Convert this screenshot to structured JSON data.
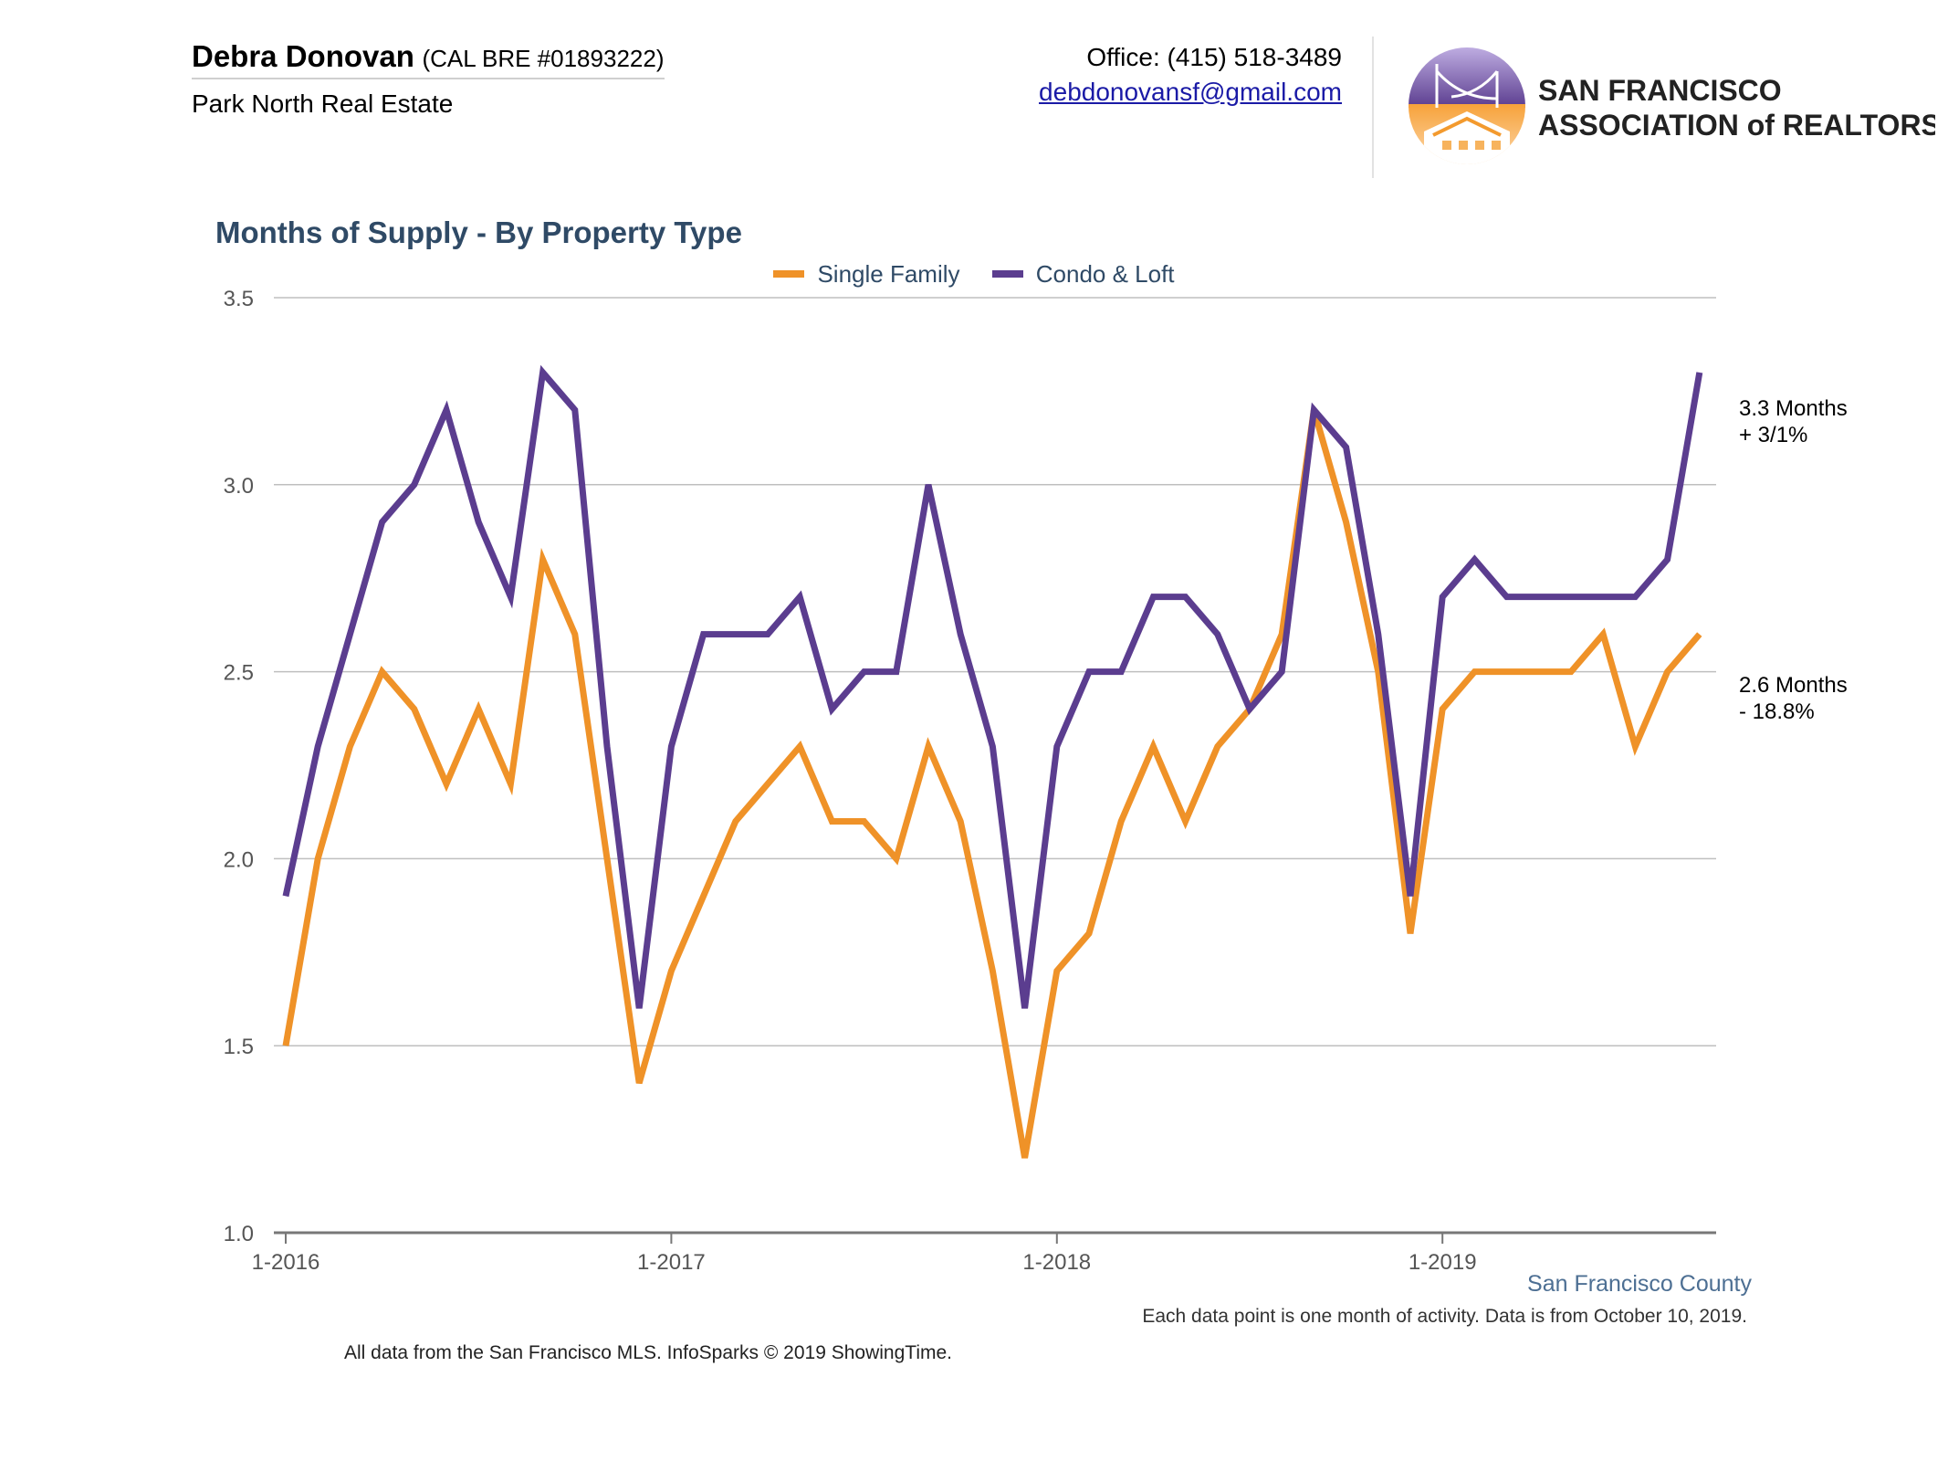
{
  "header": {
    "agent_name": "Debra Donovan",
    "agent_license": "(CAL BRE #01893222)",
    "agent_company": "Park North Real Estate",
    "office_phone": "Office: (415) 518-3489",
    "email": "debdonovansf@gmail.com",
    "logo_line1": "SAN FRANCISCO",
    "logo_line2": "ASSOCIATION of REALTORS"
  },
  "colors": {
    "single_family": "#ef9228",
    "condo_loft": "#5b3d8f",
    "title": "#2f4a66",
    "grid": "#bfbfbf"
  },
  "chart_data": {
    "type": "line",
    "title": "Months of Supply - By Property Type",
    "xlabel": "",
    "ylabel": "",
    "ylim": [
      1.0,
      3.5
    ],
    "yticks": [
      "1.0",
      "1.5",
      "2.0",
      "2.5",
      "3.0",
      "3.5"
    ],
    "xtick_labels": [
      "1-2016",
      "1-2017",
      "1-2018",
      "1-2019"
    ],
    "x": [
      "1-2016",
      "2-2016",
      "3-2016",
      "4-2016",
      "5-2016",
      "6-2016",
      "7-2016",
      "8-2016",
      "9-2016",
      "10-2016",
      "11-2016",
      "12-2016",
      "1-2017",
      "2-2017",
      "3-2017",
      "4-2017",
      "5-2017",
      "6-2017",
      "7-2017",
      "8-2017",
      "9-2017",
      "10-2017",
      "11-2017",
      "12-2017",
      "1-2018",
      "2-2018",
      "3-2018",
      "4-2018",
      "5-2018",
      "6-2018",
      "7-2018",
      "8-2018",
      "9-2018",
      "10-2018",
      "11-2018",
      "12-2018",
      "1-2019",
      "2-2019",
      "3-2019",
      "4-2019",
      "5-2019",
      "6-2019",
      "7-2019",
      "8-2019",
      "9-2019"
    ],
    "legend_position": "top-center",
    "grid": true,
    "series": [
      {
        "name": "Single Family",
        "values": [
          1.5,
          2.0,
          2.3,
          2.5,
          2.4,
          2.2,
          2.4,
          2.2,
          2.8,
          2.6,
          2.0,
          1.4,
          1.7,
          1.9,
          2.1,
          2.2,
          2.3,
          2.1,
          2.1,
          2.0,
          2.3,
          2.1,
          1.7,
          1.2,
          1.7,
          1.8,
          2.1,
          2.3,
          2.1,
          2.3,
          2.4,
          2.6,
          3.2,
          2.9,
          2.5,
          1.8,
          2.4,
          2.5,
          2.5,
          2.5,
          2.5,
          2.6,
          2.3,
          2.5,
          2.6
        ],
        "end_label_value": "2.6 Months",
        "end_label_change": "- 18.8%"
      },
      {
        "name": "Condo & Loft",
        "values": [
          1.9,
          2.3,
          2.6,
          2.9,
          3.0,
          3.2,
          2.9,
          2.7,
          3.3,
          3.2,
          2.3,
          1.6,
          2.3,
          2.6,
          2.6,
          2.6,
          2.7,
          2.4,
          2.5,
          2.5,
          3.0,
          2.6,
          2.3,
          1.6,
          2.3,
          2.5,
          2.5,
          2.7,
          2.7,
          2.6,
          2.4,
          2.5,
          3.2,
          3.1,
          2.6,
          1.9,
          2.7,
          2.8,
          2.7,
          2.7,
          2.7,
          2.7,
          2.7,
          2.8,
          3.3
        ],
        "end_label_value": "3.3 Months",
        "end_label_change": "+ 3/1%"
      }
    ],
    "region": "San Francisco County",
    "note": "Each data point is one month of activity. Data is from October 10, 2019."
  },
  "footer": {
    "source": "All data from the San Francisco MLS. InfoSparks © 2019 ShowingTime."
  }
}
